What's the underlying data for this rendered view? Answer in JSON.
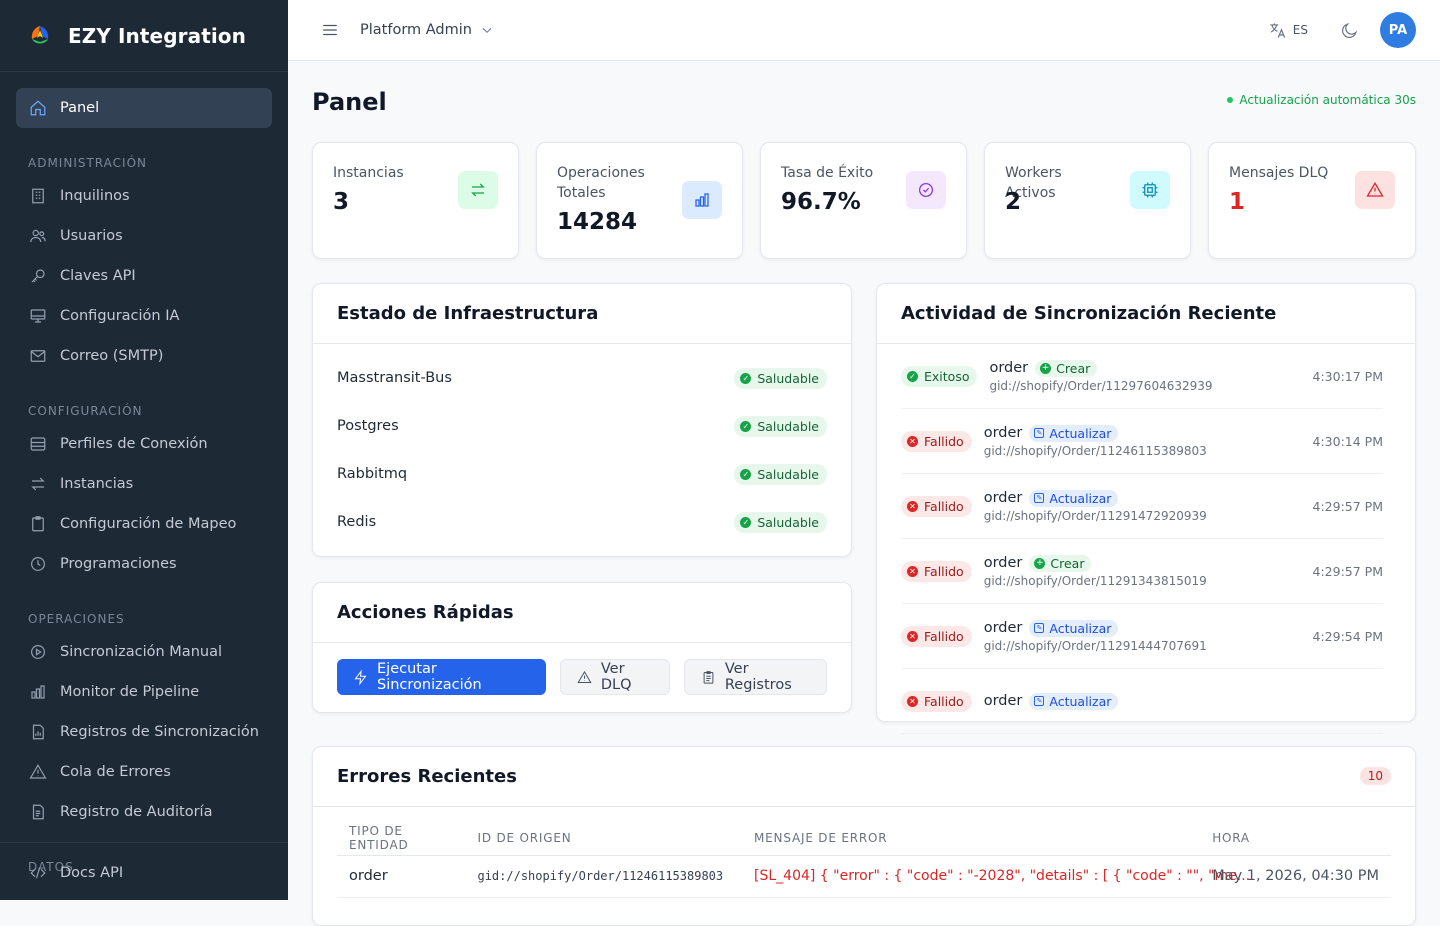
{
  "brand": {
    "name": "EZY Integration"
  },
  "sidebar": {
    "active": {
      "label": "Panel",
      "icon": "home-icon"
    },
    "sections": {
      "admin": "ADMINISTRACIÓN",
      "config": "CONFIGURACIÓN",
      "ops": "OPERACIONES",
      "data": "DATOS"
    },
    "items": {
      "tenants": "Inquilinos",
      "users": "Usuarios",
      "api_keys": "Claves API",
      "ai_config": "Configuración IA",
      "smtp": "Correo (SMTP)",
      "profiles": "Perfiles de Conexión",
      "instances": "Instancias",
      "mapping": "Configuración de Mapeo",
      "schedules": "Programaciones",
      "manual_sync": "Sincronización Manual",
      "pipeline": "Monitor de Pipeline",
      "sync_logs": "Registros de Sincronización",
      "error_queue": "Cola de Errores",
      "audit": "Registro de Auditoría",
      "api_docs": "Docs API"
    }
  },
  "topbar": {
    "tenant": "Platform Admin",
    "lang": "ES",
    "avatar": "PA"
  },
  "page": {
    "title": "Panel",
    "auto_refresh": "Actualización automática 30s"
  },
  "stats": [
    {
      "label": "Instancias",
      "value": "3",
      "icon": "arrows-exchange-icon",
      "color": "#16a34a",
      "bg": "#dcfce7"
    },
    {
      "label": "Operaciones Totales",
      "value": "14284",
      "icon": "bar-chart-icon",
      "color": "#2563eb",
      "bg": "#dbeafe"
    },
    {
      "label": "Tasa de Éxito",
      "value": "96.7%",
      "icon": "check-circle-icon",
      "color": "#9333ea",
      "bg": "#f3e8ff"
    },
    {
      "label": "Workers Activos",
      "value": "2",
      "icon": "cpu-icon",
      "color": "#0891b2",
      "bg": "#cffafe"
    },
    {
      "label": "Mensajes DLQ",
      "value": "1",
      "icon": "alert-triangle-icon",
      "color": "#dc2626",
      "bg": "#fee2e2"
    }
  ],
  "infra": {
    "title": "Estado de Infraestructura",
    "rows": [
      {
        "name": "Masstransit-Bus",
        "status": "Saludable"
      },
      {
        "name": "Postgres",
        "status": "Saludable"
      },
      {
        "name": "Rabbitmq",
        "status": "Saludable"
      },
      {
        "name": "Redis",
        "status": "Saludable"
      }
    ]
  },
  "quick": {
    "title": "Acciones Rápidas",
    "run_sync": "Ejecutar Sincronización",
    "view_dlq": "Ver DLQ",
    "view_logs": "Ver Registros"
  },
  "activity": {
    "title": "Actividad de Sincronización Reciente",
    "rows": [
      {
        "status": "Exitoso",
        "kind": "ok",
        "entity": "order",
        "op": "Crear",
        "op_kind": "create",
        "gid": "gid://shopify/Order/11297604632939",
        "time": "4:30:17 PM"
      },
      {
        "status": "Fallido",
        "kind": "fail",
        "entity": "order",
        "op": "Actualizar",
        "op_kind": "update",
        "gid": "gid://shopify/Order/11246115389803",
        "time": "4:30:14 PM"
      },
      {
        "status": "Fallido",
        "kind": "fail",
        "entity": "order",
        "op": "Actualizar",
        "op_kind": "update",
        "gid": "gid://shopify/Order/11291472920939",
        "time": "4:29:57 PM"
      },
      {
        "status": "Fallido",
        "kind": "fail",
        "entity": "order",
        "op": "Crear",
        "op_kind": "create",
        "gid": "gid://shopify/Order/11291343815019",
        "time": "4:29:57 PM"
      },
      {
        "status": "Fallido",
        "kind": "fail",
        "entity": "order",
        "op": "Actualizar",
        "op_kind": "update",
        "gid": "gid://shopify/Order/11291444707691",
        "time": "4:29:54 PM"
      },
      {
        "status": "Fallido",
        "kind": "fail",
        "entity": "order",
        "op": "Actualizar",
        "op_kind": "update",
        "gid": "",
        "time": ""
      }
    ]
  },
  "errors": {
    "title": "Errores Recientes",
    "count": "10",
    "columns": [
      "TIPO DE ENTIDAD",
      "ID DE ORIGEN",
      "MENSAJE DE ERROR",
      "HORA"
    ],
    "rows": [
      {
        "entity": "order",
        "source": "gid://shopify/Order/11246115389803",
        "message": "[SL_404] { \"error\" : { \"code\" : \"-2028\", \"details\" : [ { \"code\" : \"\", \"me...",
        "time": "May 1, 2026, 04:30 PM"
      }
    ]
  }
}
